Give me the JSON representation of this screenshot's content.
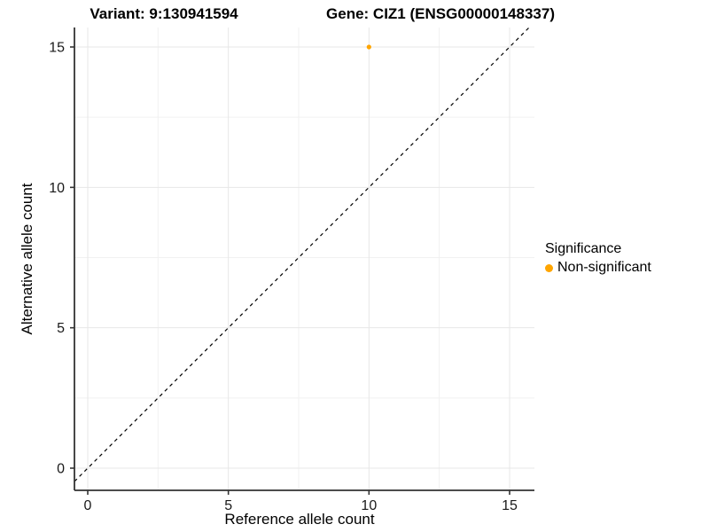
{
  "chart_data": {
    "type": "scatter",
    "title_left": "Variant: 9:130941594",
    "title_right": "Gene: CIZ1 (ENSG00000148337)",
    "xlabel": "Reference allele count",
    "ylabel": "Alternative allele count",
    "xticks": [
      0,
      5,
      10,
      15
    ],
    "yticks": [
      0,
      5,
      10,
      15
    ],
    "minor_ticks": [
      2.5,
      7.5,
      12.5
    ],
    "xlim": [
      -0.47,
      15.88
    ],
    "ylim": [
      -0.79,
      15.7
    ],
    "grid": "major+minor",
    "points": [
      {
        "x": 10,
        "y": 15,
        "series": "Non-significant",
        "color": "#FFA500"
      }
    ],
    "reference_line": {
      "style": "dashed",
      "slope": 1,
      "intercept": 0,
      "color": "#000000"
    },
    "legend": {
      "title": "Significance",
      "position": "right",
      "entries": [
        {
          "label": "Non-significant",
          "color": "#FFA500",
          "marker": "circle"
        }
      ]
    },
    "colors": {
      "background": "#FFFFFF",
      "grid_major": "#E7E7E7",
      "grid_minor": "#F1F1F1",
      "axis": "#333333",
      "tick_text": "#1A1A1A",
      "text": "#000000"
    }
  }
}
